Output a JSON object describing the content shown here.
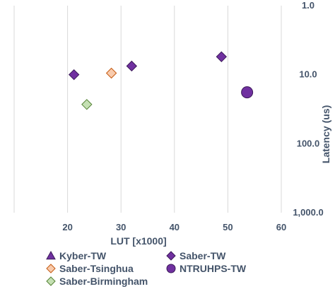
{
  "chart_data": {
    "type": "scatter",
    "xlabel": "LUT [x1000]",
    "ylabel": "Latency (us)",
    "xlim": [
      10,
      60
    ],
    "x_ticks": [
      "20",
      "30",
      "40",
      "50",
      "60"
    ],
    "x_tick_values": [
      20,
      30,
      40,
      50,
      60
    ],
    "ylim": [
      1,
      1000
    ],
    "y_scale": "log",
    "y_reversed": true,
    "y_ticks": [
      "1.0",
      "10.0",
      "100.0",
      "1,000.0"
    ],
    "y_tick_values": [
      1,
      10,
      100,
      1000
    ],
    "grid": "vertical",
    "legend_position": "bottom",
    "series": [
      {
        "name": "Kyber-TW",
        "marker": "triangle",
        "color": "#7030A0",
        "points": []
      },
      {
        "name": "Saber-TW",
        "marker": "diamond",
        "color": "#7030A0",
        "points": [
          [
            21.2,
            10
          ],
          [
            32.0,
            7.5
          ],
          [
            48.8,
            5.5
          ]
        ]
      },
      {
        "name": "Saber-Tsinghua",
        "marker": "diamond",
        "color": "#F8CBAD",
        "points": [
          [
            28.2,
            9.5
          ]
        ]
      },
      {
        "name": "NTRUHPS-TW",
        "marker": "circle",
        "color": "#7030A0",
        "points": [
          [
            53.6,
            18
          ]
        ]
      },
      {
        "name": "Saber-Birmingham",
        "marker": "diamond",
        "color": "#C5E0B3",
        "points": [
          [
            23.6,
            27
          ]
        ]
      }
    ]
  }
}
